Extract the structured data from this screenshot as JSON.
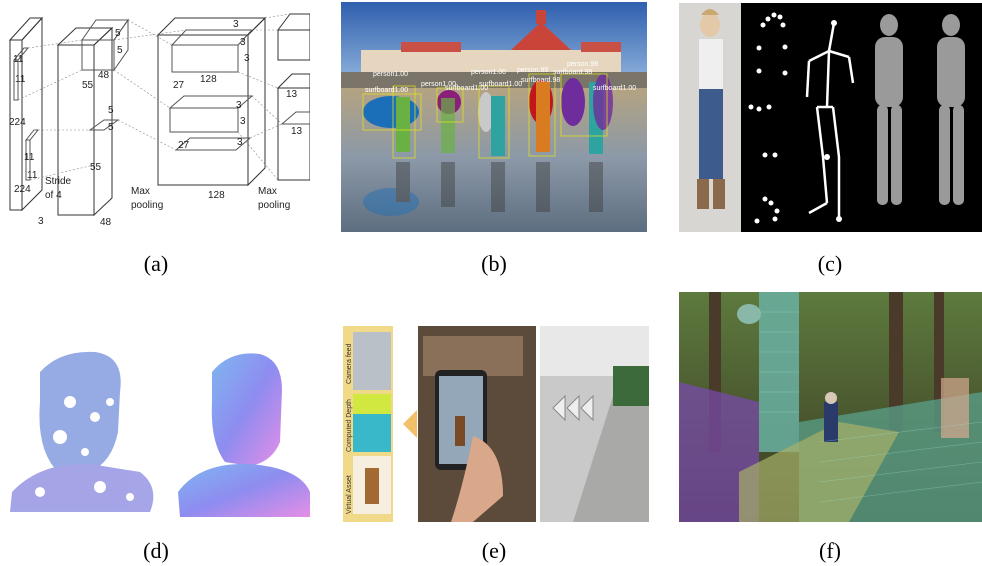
{
  "captions": [
    "(a)",
    "(b)",
    "(c)",
    "(d)",
    "(e)",
    "(f)"
  ],
  "panel_a": {
    "labels": {
      "n11a": "11",
      "n11b": "11",
      "n224a": "224",
      "n11c": "11",
      "n11d": "11",
      "n224b": "224",
      "stride": "Stride",
      "of4": "of 4",
      "n3": "3",
      "n55a": "55",
      "n55b": "55",
      "n48a": "48",
      "n48b": "48",
      "n5a": "5",
      "n5b": "5",
      "n5c": "5",
      "n5d": "5",
      "maxpool1a": "Max",
      "maxpool1b": "pooling",
      "n27a": "27",
      "n27b": "27",
      "n128a": "128",
      "n128b": "128",
      "n3a": "3",
      "n3b": "3",
      "n3c": "3",
      "n3d": "3",
      "n3e": "3",
      "n3f": "3",
      "maxpool2a": "Max",
      "maxpool2b": "pooling",
      "n13a": "13",
      "n13b": "13"
    }
  },
  "panel_b": {
    "labels": [
      "person1.00",
      "person1.00",
      "person1.00",
      "person.99",
      "surfboard.98",
      "surfboard1.00",
      "surfboard1.00",
      "surfboard1.00",
      "surfboard.98",
      "person.98",
      "surfboard1.00"
    ]
  },
  "panel_e": {
    "sidebar": [
      "Camera feed",
      "Computed Depth",
      "Virtual Asset"
    ]
  }
}
